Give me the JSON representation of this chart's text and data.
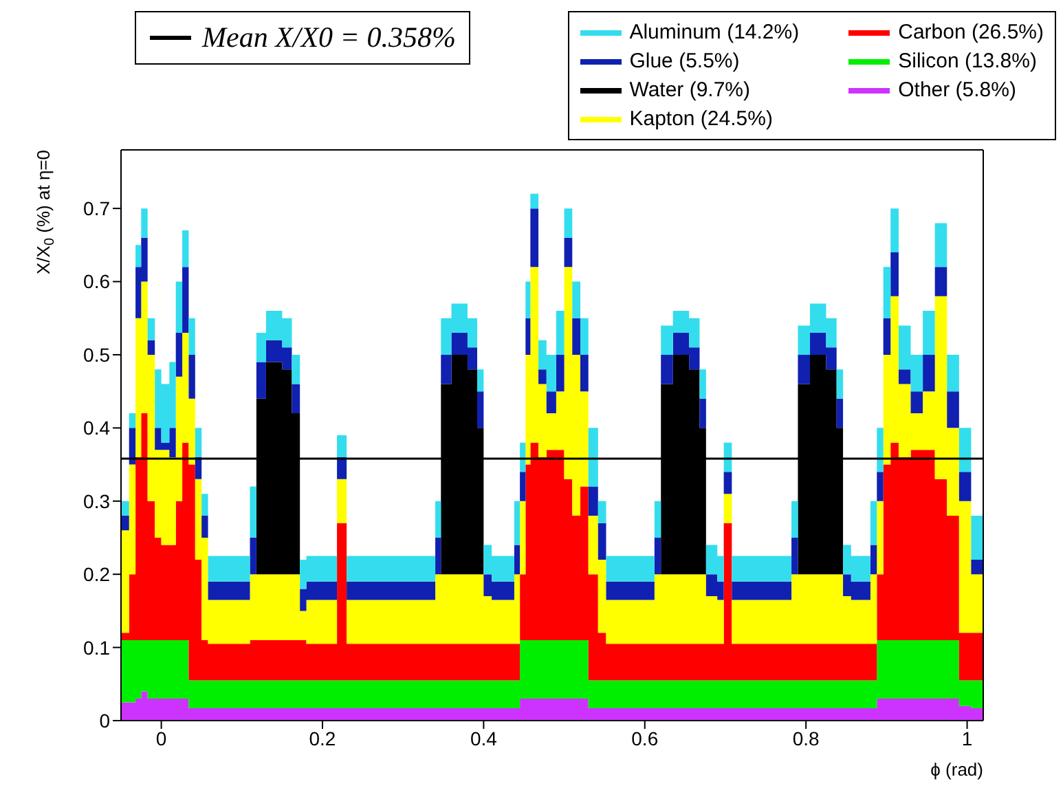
{
  "chart_data": {
    "type": "area",
    "stacked": true,
    "xlabel": "ϕ (rad)",
    "ylabel": "X/X$_{0}$ (%) at η=0",
    "x": [
      -0.05,
      -0.04,
      -0.032,
      -0.025,
      -0.017,
      -0.008,
      0,
      0.01,
      0.018,
      0.026,
      0.034,
      0.042,
      0.05,
      0.058,
      0.11,
      0.118,
      0.13,
      0.15,
      0.162,
      0.172,
      0.18,
      0.218,
      0.23,
      0.34,
      0.347,
      0.36,
      0.38,
      0.392,
      0.4,
      0.41,
      0.438,
      0.445,
      0.452,
      0.458,
      0.468,
      0.478,
      0.49,
      0.5,
      0.51,
      0.52,
      0.53,
      0.542,
      0.552,
      0.612,
      0.62,
      0.635,
      0.655,
      0.668,
      0.676,
      0.69,
      0.698,
      0.708,
      0.782,
      0.79,
      0.805,
      0.825,
      0.838,
      0.846,
      0.856,
      0.88,
      0.888,
      0.896,
      0.905,
      0.915,
      0.93,
      0.945,
      0.96,
      0.975,
      0.99,
      1.005,
      1.02
    ],
    "series": [
      {
        "name": "Other (5.8%)",
        "color": "#cc33ff",
        "values": [
          0.025,
          0.025,
          0.03,
          0.04,
          0.03,
          0.03,
          0.03,
          0.03,
          0.03,
          0.03,
          0.017,
          0.017,
          0.017,
          0.017,
          0.017,
          0.017,
          0.017,
          0.017,
          0.017,
          0.017,
          0.017,
          0.017,
          0.017,
          0.017,
          0.017,
          0.017,
          0.017,
          0.017,
          0.017,
          0.017,
          0.017,
          0.03,
          0.03,
          0.03,
          0.03,
          0.03,
          0.03,
          0.03,
          0.03,
          0.03,
          0.017,
          0.017,
          0.017,
          0.017,
          0.017,
          0.017,
          0.017,
          0.017,
          0.017,
          0.017,
          0.017,
          0.017,
          0.017,
          0.017,
          0.017,
          0.017,
          0.017,
          0.017,
          0.017,
          0.017,
          0.03,
          0.03,
          0.03,
          0.03,
          0.03,
          0.03,
          0.03,
          0.03,
          0.02,
          0.017,
          0.017
        ]
      },
      {
        "name": "Silicon (13.8%)",
        "color": "#00ee00",
        "values": [
          0.085,
          0.085,
          0.08,
          0.07,
          0.08,
          0.08,
          0.08,
          0.08,
          0.08,
          0.08,
          0.038,
          0.038,
          0.038,
          0.038,
          0.038,
          0.038,
          0.038,
          0.038,
          0.038,
          0.038,
          0.038,
          0.038,
          0.038,
          0.038,
          0.038,
          0.038,
          0.038,
          0.038,
          0.038,
          0.038,
          0.038,
          0.08,
          0.08,
          0.08,
          0.08,
          0.08,
          0.08,
          0.08,
          0.08,
          0.08,
          0.038,
          0.038,
          0.038,
          0.038,
          0.038,
          0.038,
          0.038,
          0.038,
          0.038,
          0.038,
          0.038,
          0.038,
          0.038,
          0.038,
          0.038,
          0.038,
          0.038,
          0.038,
          0.038,
          0.038,
          0.08,
          0.08,
          0.08,
          0.08,
          0.08,
          0.08,
          0.08,
          0.08,
          0.035,
          0.038,
          0.038
        ]
      },
      {
        "name": "Carbon (26.5%)",
        "color": "#ff0000",
        "values": [
          0.01,
          0.09,
          0.25,
          0.31,
          0.19,
          0.14,
          0.13,
          0.13,
          0.19,
          0.27,
          0.295,
          0.165,
          0.055,
          0.05,
          0.055,
          0.055,
          0.055,
          0.055,
          0.055,
          0.055,
          0.05,
          0.215,
          0.05,
          0.05,
          0.05,
          0.05,
          0.05,
          0.05,
          0.05,
          0.05,
          0.05,
          0.09,
          0.24,
          0.27,
          0.25,
          0.26,
          0.26,
          0.22,
          0.17,
          0.21,
          0.145,
          0.065,
          0.05,
          0.05,
          0.05,
          0.05,
          0.05,
          0.05,
          0.05,
          0.05,
          0.215,
          0.05,
          0.05,
          0.05,
          0.05,
          0.05,
          0.05,
          0.05,
          0.05,
          0.05,
          0.09,
          0.24,
          0.27,
          0.25,
          0.26,
          0.26,
          0.22,
          0.17,
          0.065,
          0.065,
          0.065
        ]
      },
      {
        "name": "Kapton (24.5%)",
        "color": "#ffff00",
        "values": [
          0.14,
          0.15,
          0.19,
          0.18,
          0.2,
          0.12,
          0.13,
          0.12,
          0.17,
          0.15,
          0.09,
          0.11,
          0.14,
          0.06,
          0.09,
          0.09,
          0.09,
          0.09,
          0.09,
          0.04,
          0.06,
          0.06,
          0.06,
          0.095,
          0.095,
          0.095,
          0.095,
          0.095,
          0.065,
          0.06,
          0.095,
          0.1,
          0.15,
          0.24,
          0.1,
          0.05,
          0.08,
          0.29,
          0.22,
          0.13,
          0.08,
          0.1,
          0.06,
          0.095,
          0.095,
          0.095,
          0.095,
          0.095,
          0.065,
          0.06,
          0.04,
          0.06,
          0.095,
          0.095,
          0.095,
          0.095,
          0.095,
          0.065,
          0.06,
          0.095,
          0.1,
          0.15,
          0.2,
          0.1,
          0.05,
          0.08,
          0.25,
          0.12,
          0.18,
          0.08,
          0.08
        ]
      },
      {
        "name": "Water (9.7%)",
        "color": "#000000",
        "values": [
          0,
          0,
          0,
          0,
          0,
          0,
          0,
          0,
          0,
          0,
          0,
          0,
          0,
          0,
          0,
          0.24,
          0.29,
          0.28,
          0.22,
          0,
          0,
          0,
          0,
          0,
          0.26,
          0.3,
          0.28,
          0.2,
          0,
          0,
          0,
          0,
          0,
          0,
          0,
          0,
          0,
          0,
          0,
          0,
          0,
          0,
          0,
          0,
          0.26,
          0.3,
          0.28,
          0.2,
          0,
          0,
          0,
          0,
          0,
          0.26,
          0.3,
          0.28,
          0.2,
          0,
          0,
          0,
          0,
          0,
          0,
          0,
          0,
          0,
          0,
          0,
          0,
          0,
          0
        ]
      },
      {
        "name": "Glue (5.5%)",
        "color": "#1020b0",
        "values": [
          0.02,
          0.05,
          0.07,
          0.06,
          0.02,
          0.03,
          0.01,
          0.04,
          0.06,
          0.09,
          0.06,
          0.03,
          0.03,
          0.025,
          0.05,
          0.05,
          0.03,
          0.03,
          0.04,
          0.03,
          0.025,
          0.03,
          0.025,
          0.05,
          0.04,
          0.03,
          0.03,
          0.05,
          0.03,
          0.025,
          0.04,
          0.04,
          0.05,
          0.08,
          0.02,
          0.03,
          0.05,
          0.04,
          0.05,
          0.05,
          0.04,
          0.05,
          0.025,
          0.05,
          0.04,
          0.03,
          0.03,
          0.04,
          0.03,
          0.025,
          0.03,
          0.025,
          0.05,
          0.04,
          0.03,
          0.03,
          0.04,
          0.03,
          0.025,
          0.04,
          0.04,
          0.05,
          0.06,
          0.02,
          0.03,
          0.05,
          0.04,
          0.05,
          0.04,
          0.02,
          0.02
        ]
      },
      {
        "name": "Aluminum (14.2%)",
        "color": "#33ddee",
        "values": [
          0.02,
          0.02,
          0.03,
          0.04,
          0.03,
          0.08,
          0.08,
          0.09,
          0.07,
          0.05,
          0.05,
          0.04,
          0.03,
          0.035,
          0.07,
          0.04,
          0.04,
          0.04,
          0.04,
          0.04,
          0.035,
          0.03,
          0.035,
          0.05,
          0.05,
          0.04,
          0.04,
          0.03,
          0.04,
          0.035,
          0.06,
          0.04,
          0.05,
          0.02,
          0.04,
          0.05,
          0.06,
          0.04,
          0.05,
          0.05,
          0.08,
          0.03,
          0.035,
          0.05,
          0.04,
          0.03,
          0.04,
          0.04,
          0.04,
          0.035,
          0.04,
          0.035,
          0.05,
          0.04,
          0.04,
          0.04,
          0.04,
          0.04,
          0.035,
          0.06,
          0.06,
          0.07,
          0.06,
          0.06,
          0.05,
          0.06,
          0.06,
          0.05,
          0.06,
          0.06,
          0.06
        ]
      }
    ],
    "xlim": [
      -0.05,
      1.02
    ],
    "xticks": [
      0,
      0.2,
      0.4,
      0.6,
      0.8,
      1
    ],
    "ylim": [
      0,
      0.78
    ],
    "yticks": [
      0,
      0.1,
      0.2,
      0.3,
      0.4,
      0.5,
      0.6,
      0.7
    ],
    "ref_lines": [
      {
        "axis": "y",
        "value": 0.358,
        "label": "Mean X/X0 = 0.358%",
        "color": "#000000"
      }
    ],
    "legend": "top right"
  }
}
